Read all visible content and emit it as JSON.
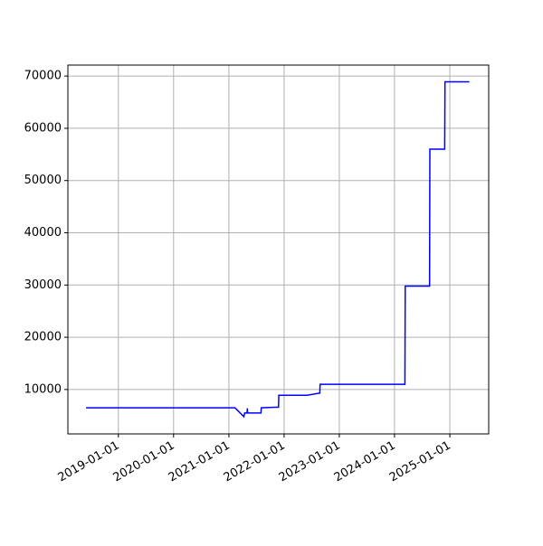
{
  "chart_data": {
    "type": "line",
    "x": [
      "2018-06-01",
      "2021-02-10",
      "2021-04-10",
      "2021-04-15",
      "2021-05-01",
      "2021-05-03",
      "2021-05-05",
      "2021-08-01",
      "2021-08-03",
      "2021-11-01",
      "2021-11-25",
      "2021-11-27",
      "2022-06-01",
      "2022-08-25",
      "2022-08-27",
      "2024-03-10",
      "2024-03-12",
      "2024-08-20",
      "2024-08-22",
      "2024-11-28",
      "2024-11-30",
      "2025-05-10"
    ],
    "series": [
      {
        "color": "#0000ff",
        "values": [
          6500,
          6500,
          4800,
          5500,
          5500,
          6400,
          5500,
          5500,
          6500,
          6600,
          6600,
          8900,
          8900,
          9300,
          11000,
          11000,
          29800,
          29800,
          56000,
          56000,
          68900,
          68900
        ]
      }
    ],
    "xlim": [
      "2018-02-01",
      "2025-09-15"
    ],
    "xticks": [
      "2019-01-01",
      "2020-01-01",
      "2021-01-01",
      "2022-01-01",
      "2023-01-01",
      "2024-01-01",
      "2025-01-01"
    ],
    "ylim": [
      1500,
      72100
    ],
    "yticks": [
      10000,
      20000,
      30000,
      40000,
      50000,
      60000,
      70000
    ],
    "grid": true
  }
}
